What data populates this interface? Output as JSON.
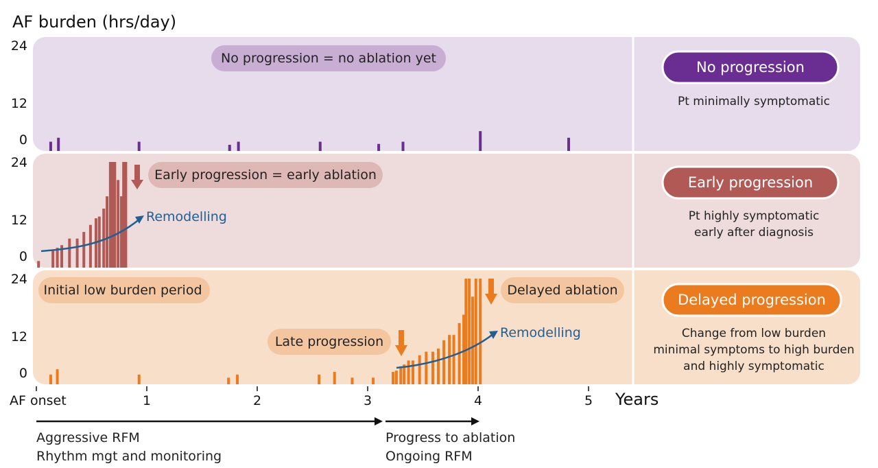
{
  "title": "AF burden (hrs/day)",
  "colors": {
    "panel_top": "#e6dceb",
    "panel_mid": "#eedcdc",
    "panel_bot": "#f8dfc9",
    "purple": "#6a2d91",
    "red": "#b15a55",
    "orange": "#ea7b1f",
    "blue": "#1f5f95",
    "pill_top": "#c9aed4",
    "pill_mid": "#deb8b5",
    "pill_bot": "#f3c6a0"
  },
  "chart_data": {
    "type": "bar",
    "y_ticks": [
      "24",
      "12",
      "0"
    ],
    "x_ticks": [
      "AF onset",
      "1",
      "2",
      "3",
      "4",
      "5"
    ],
    "x_axis_label": "Years",
    "ylim": [
      0,
      24
    ],
    "xlim": [
      0,
      5.4
    ],
    "panels": [
      {
        "id": "no",
        "color": "purple",
        "bars": [
          {
            "x": 0.13,
            "y": 2.1
          },
          {
            "x": 0.2,
            "y": 3.0
          },
          {
            "x": 0.93,
            "y": 2.1
          },
          {
            "x": 1.75,
            "y": 1.4
          },
          {
            "x": 1.83,
            "y": 2.1
          },
          {
            "x": 2.57,
            "y": 2.1
          },
          {
            "x": 3.1,
            "y": 1.6
          },
          {
            "x": 3.32,
            "y": 2.1
          },
          {
            "x": 4.02,
            "y": 4.5
          },
          {
            "x": 4.82,
            "y": 3.0
          }
        ]
      },
      {
        "id": "early",
        "color": "red",
        "bars": [
          {
            "x": 0.02,
            "y": 1.5
          },
          {
            "x": 0.15,
            "y": 3.8
          },
          {
            "x": 0.19,
            "y": 4.5
          },
          {
            "x": 0.23,
            "y": 5.1
          },
          {
            "x": 0.3,
            "y": 6.6
          },
          {
            "x": 0.37,
            "y": 6.6
          },
          {
            "x": 0.43,
            "y": 8.1
          },
          {
            "x": 0.49,
            "y": 9.7
          },
          {
            "x": 0.54,
            "y": 11.2
          },
          {
            "x": 0.57,
            "y": 11.6
          },
          {
            "x": 0.61,
            "y": 13.4
          },
          {
            "x": 0.64,
            "y": 16.2
          },
          {
            "x": 0.67,
            "y": 24
          },
          {
            "x": 0.69,
            "y": 24
          },
          {
            "x": 0.71,
            "y": 24
          },
          {
            "x": 0.74,
            "y": 19.9
          },
          {
            "x": 0.77,
            "y": 16.2
          },
          {
            "x": 0.79,
            "y": 24
          },
          {
            "x": 0.81,
            "y": 24
          }
        ],
        "pill": "Early progression = early ablation",
        "curve_label": "Remodelling"
      },
      {
        "id": "delayed",
        "color": "orange",
        "bars": [
          {
            "x": 0.13,
            "y": 2.2
          },
          {
            "x": 0.19,
            "y": 3.4
          },
          {
            "x": 0.93,
            "y": 2.2
          },
          {
            "x": 1.74,
            "y": 1.5
          },
          {
            "x": 1.82,
            "y": 2.2
          },
          {
            "x": 2.56,
            "y": 2.2
          },
          {
            "x": 2.7,
            "y": 2.8
          },
          {
            "x": 2.86,
            "y": 1.5
          },
          {
            "x": 3.05,
            "y": 1.5
          },
          {
            "x": 3.23,
            "y": 2.8
          },
          {
            "x": 3.26,
            "y": 3.1
          },
          {
            "x": 3.3,
            "y": 4.1
          },
          {
            "x": 3.33,
            "y": 4.5
          },
          {
            "x": 3.37,
            "y": 5.4
          },
          {
            "x": 3.41,
            "y": 5.4
          },
          {
            "x": 3.47,
            "y": 6.6
          },
          {
            "x": 3.53,
            "y": 7.4
          },
          {
            "x": 3.59,
            "y": 7.4
          },
          {
            "x": 3.64,
            "y": 8.1
          },
          {
            "x": 3.69,
            "y": 10.0
          },
          {
            "x": 3.74,
            "y": 11.2
          },
          {
            "x": 3.78,
            "y": 11.2
          },
          {
            "x": 3.83,
            "y": 13.9
          },
          {
            "x": 3.87,
            "y": 15.8
          },
          {
            "x": 3.89,
            "y": 24
          },
          {
            "x": 3.92,
            "y": 24
          },
          {
            "x": 3.95,
            "y": 19.9
          },
          {
            "x": 3.98,
            "y": 24
          },
          {
            "x": 4.02,
            "y": 24
          }
        ],
        "curve_label": "Remodelling"
      }
    ]
  },
  "labels": {
    "no_pill": "No progression = no ablation yet",
    "early_pill": "Early progression = early ablation",
    "low_burden_pill": "Initial low burden period",
    "late_pill": "Late progression",
    "delayed_ablation_pill": "Delayed ablation",
    "remodelling_early": "Remodelling",
    "remodelling_delayed": "Remodelling"
  },
  "legend": {
    "no": {
      "badge": "No progression",
      "desc": [
        "Pt minimally symptomatic"
      ]
    },
    "early": {
      "badge": "Early progression",
      "desc": [
        "Pt highly symptomatic",
        "early after diagnosis"
      ]
    },
    "delayed": {
      "badge": "Delayed progression",
      "desc": [
        "Change from low burden",
        "minimal symptoms to high burden",
        "and highly symptomatic"
      ]
    }
  },
  "timeline": {
    "phase1": [
      "Aggressive RFM",
      "Rhythm mgt and monitoring"
    ],
    "phase2": [
      "Progress to ablation",
      "Ongoing RFM"
    ]
  }
}
